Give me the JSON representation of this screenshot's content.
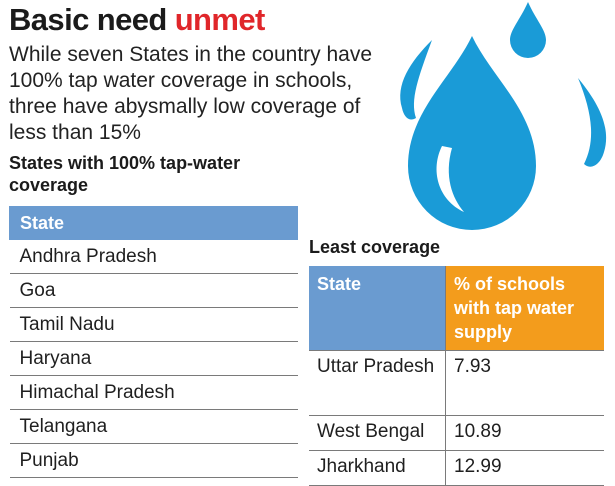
{
  "headline": {
    "part1": "Basic need ",
    "part2": "unmet"
  },
  "intro": "While seven States in the country have 100% tap water coverage in schools, three have abysmally low coverage of less than 15%",
  "full_coverage": {
    "title": "States with 100% tap-water coverage",
    "header": "State",
    "states": [
      "Andhra Pradesh",
      "Goa",
      "Tamil Nadu",
      "Haryana",
      "Himachal Pradesh",
      "Telangana",
      "Punjab"
    ]
  },
  "least_coverage": {
    "title": "Least coverage",
    "headers": [
      "State",
      "% of schools with tap water supply"
    ],
    "rows": [
      {
        "state": "Uttar Pradesh",
        "value": "7.93"
      },
      {
        "state": "West Bengal",
        "value": "10.89"
      },
      {
        "state": "Jharkhand",
        "value": "12.99"
      }
    ]
  },
  "illustration": {
    "icon": "water-drop-icon",
    "colors": {
      "drop": "#1a9bd7",
      "highlight": "#ffffff"
    }
  },
  "colors": {
    "accent_red": "#e0262a",
    "header_blue": "#6a9bd0",
    "header_orange": "#f39c1c"
  }
}
